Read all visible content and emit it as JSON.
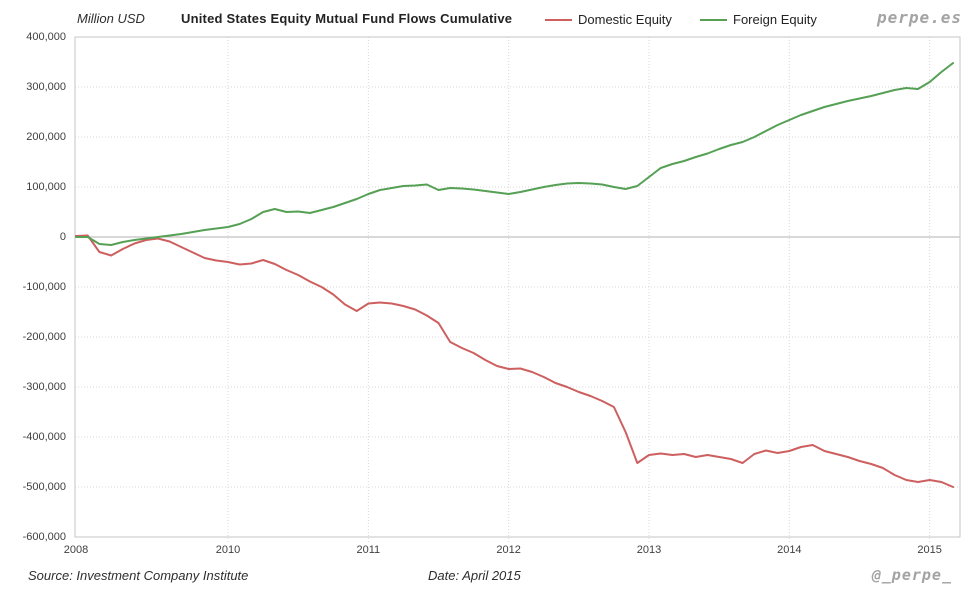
{
  "header": {
    "units_label": "Million USD",
    "title": "United States Equity Mutual Fund Flows Cumulative",
    "brand": "perpe.es"
  },
  "footer": {
    "source": "Source: Investment Company Institute",
    "date": "Date: April 2015",
    "handle": "@_perpe_"
  },
  "colors": {
    "domestic": "#cd5f5f",
    "foreign": "#55a055",
    "grid": "#d9d9d9",
    "zero_line": "#b0b0b0",
    "border": "#c6c6c6"
  },
  "chart_data": {
    "type": "line",
    "title": "United States Equity Mutual Fund Flows Cumulative",
    "units": "Million USD",
    "x_monthly_from": "2008-12",
    "x_monthly_to": "2015-03",
    "ylim": [
      -600000,
      400000
    ],
    "ytick_step": 100000,
    "grid": true,
    "legend_position": "top",
    "yticks": [
      400000,
      300000,
      200000,
      100000,
      0,
      -100000,
      -200000,
      -300000,
      -400000,
      -500000,
      -600000
    ],
    "xticks": [
      {
        "label": "2008",
        "month_index": 0
      },
      {
        "label": "2010",
        "month_index": 13
      },
      {
        "label": "2011",
        "month_index": 25
      },
      {
        "label": "2012",
        "month_index": 37
      },
      {
        "label": "2013",
        "month_index": 49
      },
      {
        "label": "2014",
        "month_index": 61
      },
      {
        "label": "2015",
        "month_index": 73
      }
    ],
    "series": [
      {
        "name": "Domestic Equity",
        "color": "#cd5f5f",
        "values": [
          2000,
          3000,
          -30000,
          -37000,
          -24000,
          -13000,
          -6000,
          -3000,
          -9000,
          -20000,
          -31000,
          -42000,
          -47000,
          -50000,
          -55000,
          -53000,
          -46000,
          -54000,
          -66000,
          -76000,
          -89000,
          -100000,
          -115000,
          -135000,
          -148000,
          -133000,
          -131000,
          -133000,
          -138000,
          -145000,
          -157000,
          -172000,
          -210000,
          -222000,
          -232000,
          -246000,
          -258000,
          -264000,
          -263000,
          -270000,
          -280000,
          -292000,
          -300000,
          -310000,
          -318000,
          -328000,
          -340000,
          -390000,
          -452000,
          -436000,
          -433000,
          -436000,
          -434000,
          -440000,
          -436000,
          -440000,
          -444000,
          -452000,
          -434000,
          -427000,
          -432000,
          -428000,
          -420000,
          -416000,
          -428000,
          -434000,
          -440000,
          -448000,
          -454000,
          -462000,
          -476000,
          -486000,
          -490000,
          -486000,
          -490000,
          -500000
        ]
      },
      {
        "name": "Foreign Equity",
        "color": "#55a055",
        "values": [
          0,
          0,
          -14000,
          -16000,
          -10000,
          -6000,
          -3000,
          0,
          3000,
          6000,
          10000,
          14000,
          17000,
          20000,
          26000,
          36000,
          50000,
          56000,
          50000,
          51000,
          48000,
          54000,
          60000,
          68000,
          76000,
          86000,
          94000,
          98000,
          102000,
          103000,
          105000,
          94000,
          98000,
          97000,
          95000,
          92000,
          89000,
          86000,
          90000,
          95000,
          100000,
          104000,
          107000,
          108000,
          107000,
          105000,
          100000,
          96000,
          102000,
          120000,
          138000,
          146000,
          152000,
          160000,
          167000,
          176000,
          184000,
          190000,
          200000,
          212000,
          224000,
          234000,
          244000,
          252000,
          260000,
          266000,
          272000,
          277000,
          282000,
          288000,
          294000,
          298000,
          296000,
          310000,
          330000,
          348000
        ]
      }
    ]
  }
}
